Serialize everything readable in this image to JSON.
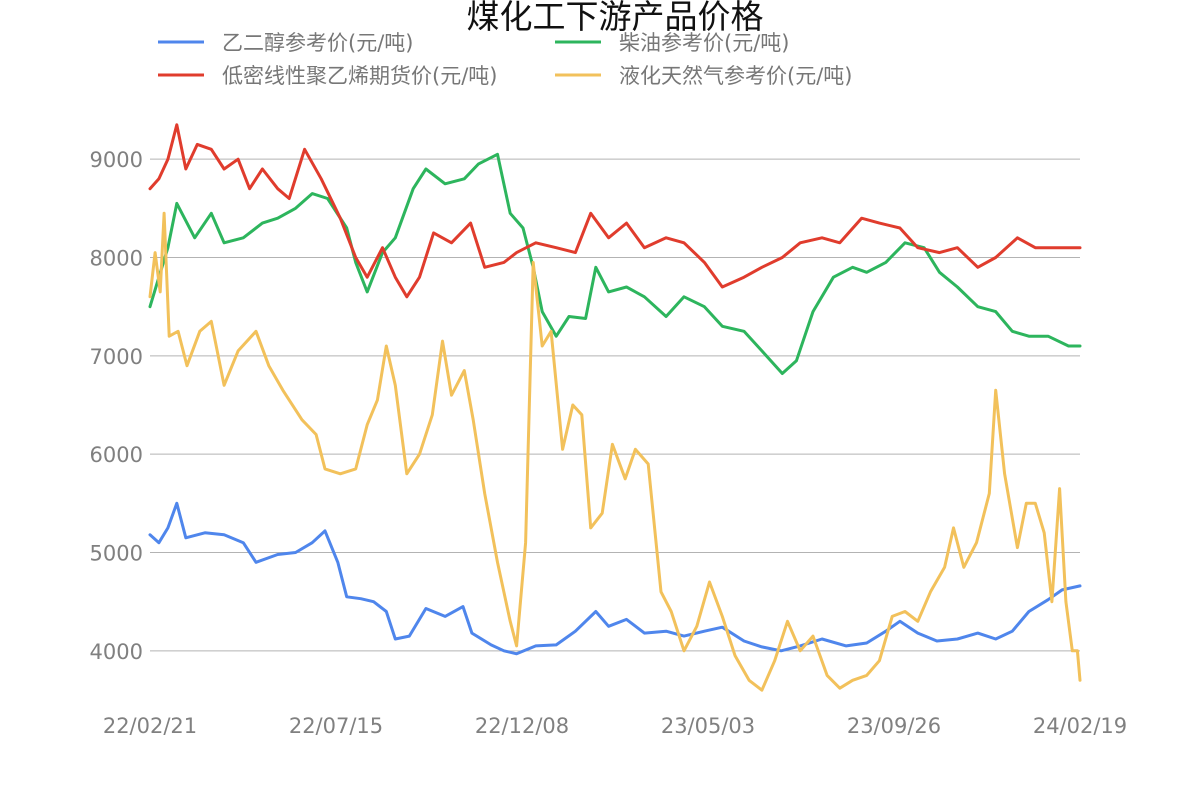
{
  "chart_data": {
    "type": "line",
    "title": "煤化工下游产品价格",
    "xlabel": "",
    "ylabel": "",
    "x_range": [
      "2022-02-21",
      "2024-02-19"
    ],
    "ylim": [
      3500,
      9500
    ],
    "y_ticks": [
      4000,
      5000,
      6000,
      7000,
      8000,
      9000
    ],
    "x_ticks": [
      "22/02/21",
      "22/07/15",
      "22/12/08",
      "23/05/03",
      "23/09/26",
      "24/02/19"
    ],
    "grid": "horizontal",
    "legend_position": "top",
    "series": [
      {
        "name": "乙二醇参考价(元/吨)",
        "color": "#4f86ec",
        "points": [
          [
            "2022-02-21",
            5180
          ],
          [
            "2022-02-28",
            5100
          ],
          [
            "2022-03-07",
            5250
          ],
          [
            "2022-03-14",
            5500
          ],
          [
            "2022-03-21",
            5150
          ],
          [
            "2022-04-05",
            5200
          ],
          [
            "2022-04-20",
            5180
          ],
          [
            "2022-05-05",
            5100
          ],
          [
            "2022-05-15",
            4900
          ],
          [
            "2022-06-01",
            4980
          ],
          [
            "2022-06-15",
            5000
          ],
          [
            "2022-06-28",
            5100
          ],
          [
            "2022-07-08",
            5220
          ],
          [
            "2022-07-18",
            4900
          ],
          [
            "2022-07-25",
            4550
          ],
          [
            "2022-08-05",
            4530
          ],
          [
            "2022-08-15",
            4500
          ],
          [
            "2022-08-25",
            4400
          ],
          [
            "2022-09-01",
            4120
          ],
          [
            "2022-09-12",
            4150
          ],
          [
            "2022-09-25",
            4430
          ],
          [
            "2022-10-10",
            4350
          ],
          [
            "2022-10-24",
            4450
          ],
          [
            "2022-10-31",
            4180
          ],
          [
            "2022-11-15",
            4060
          ],
          [
            "2022-11-25",
            4000
          ],
          [
            "2022-12-05",
            3970
          ],
          [
            "2022-12-20",
            4050
          ],
          [
            "2023-01-05",
            4060
          ],
          [
            "2023-01-20",
            4200
          ],
          [
            "2023-02-05",
            4400
          ],
          [
            "2023-02-15",
            4250
          ],
          [
            "2023-03-01",
            4320
          ],
          [
            "2023-03-15",
            4180
          ],
          [
            "2023-04-01",
            4200
          ],
          [
            "2023-04-15",
            4150
          ],
          [
            "2023-05-01",
            4200
          ],
          [
            "2023-05-15",
            4240
          ],
          [
            "2023-06-01",
            4100
          ],
          [
            "2023-06-15",
            4040
          ],
          [
            "2023-06-30",
            4000
          ],
          [
            "2023-07-15",
            4050
          ],
          [
            "2023-08-01",
            4120
          ],
          [
            "2023-08-20",
            4050
          ],
          [
            "2023-09-05",
            4080
          ],
          [
            "2023-09-20",
            4200
          ],
          [
            "2023-10-01",
            4300
          ],
          [
            "2023-10-15",
            4180
          ],
          [
            "2023-10-30",
            4100
          ],
          [
            "2023-11-15",
            4120
          ],
          [
            "2023-12-01",
            4180
          ],
          [
            "2023-12-15",
            4120
          ],
          [
            "2023-12-28",
            4200
          ],
          [
            "2024-01-10",
            4400
          ],
          [
            "2024-01-25",
            4520
          ],
          [
            "2024-02-05",
            4620
          ],
          [
            "2024-02-19",
            4660
          ]
        ]
      },
      {
        "name": "柴油参考价(元/吨)",
        "color": "#2db55d",
        "points": [
          [
            "2022-02-21",
            7500
          ],
          [
            "2022-02-28",
            7800
          ],
          [
            "2022-03-07",
            8100
          ],
          [
            "2022-03-14",
            8550
          ],
          [
            "2022-03-28",
            8200
          ],
          [
            "2022-04-10",
            8450
          ],
          [
            "2022-04-20",
            8150
          ],
          [
            "2022-05-05",
            8200
          ],
          [
            "2022-05-20",
            8350
          ],
          [
            "2022-06-01",
            8400
          ],
          [
            "2022-06-15",
            8500
          ],
          [
            "2022-06-28",
            8650
          ],
          [
            "2022-07-10",
            8600
          ],
          [
            "2022-07-25",
            8300
          ],
          [
            "2022-08-01",
            7950
          ],
          [
            "2022-08-10",
            7650
          ],
          [
            "2022-08-22",
            8050
          ],
          [
            "2022-09-01",
            8200
          ],
          [
            "2022-09-15",
            8700
          ],
          [
            "2022-09-25",
            8900
          ],
          [
            "2022-10-10",
            8750
          ],
          [
            "2022-10-25",
            8800
          ],
          [
            "2022-11-05",
            8950
          ],
          [
            "2022-11-20",
            9050
          ],
          [
            "2022-11-30",
            8450
          ],
          [
            "2022-12-10",
            8300
          ],
          [
            "2022-12-18",
            7900
          ],
          [
            "2022-12-25",
            7450
          ],
          [
            "2023-01-05",
            7200
          ],
          [
            "2023-01-15",
            7400
          ],
          [
            "2023-01-28",
            7380
          ],
          [
            "2023-02-05",
            7900
          ],
          [
            "2023-02-15",
            7650
          ],
          [
            "2023-03-01",
            7700
          ],
          [
            "2023-03-15",
            7600
          ],
          [
            "2023-04-01",
            7400
          ],
          [
            "2023-04-15",
            7600
          ],
          [
            "2023-05-01",
            7500
          ],
          [
            "2023-05-15",
            7300
          ],
          [
            "2023-06-01",
            7250
          ],
          [
            "2023-06-15",
            7050
          ],
          [
            "2023-07-01",
            6820
          ],
          [
            "2023-07-12",
            6950
          ],
          [
            "2023-07-25",
            7450
          ],
          [
            "2023-08-10",
            7800
          ],
          [
            "2023-08-25",
            7900
          ],
          [
            "2023-09-05",
            7850
          ],
          [
            "2023-09-20",
            7950
          ],
          [
            "2023-10-05",
            8150
          ],
          [
            "2023-10-20",
            8100
          ],
          [
            "2023-11-01",
            7850
          ],
          [
            "2023-11-15",
            7700
          ],
          [
            "2023-12-01",
            7500
          ],
          [
            "2023-12-15",
            7450
          ],
          [
            "2023-12-28",
            7250
          ],
          [
            "2024-01-10",
            7200
          ],
          [
            "2024-01-25",
            7200
          ],
          [
            "2024-02-10",
            7100
          ],
          [
            "2024-02-19",
            7100
          ]
        ]
      },
      {
        "name": "低密线性聚乙烯期货价(元/吨)",
        "color": "#e03c2d",
        "points": [
          [
            "2022-02-21",
            8700
          ],
          [
            "2022-02-28",
            8800
          ],
          [
            "2022-03-07",
            9000
          ],
          [
            "2022-03-14",
            9350
          ],
          [
            "2022-03-21",
            8900
          ],
          [
            "2022-03-30",
            9150
          ],
          [
            "2022-04-10",
            9100
          ],
          [
            "2022-04-20",
            8900
          ],
          [
            "2022-05-01",
            9000
          ],
          [
            "2022-05-10",
            8700
          ],
          [
            "2022-05-20",
            8900
          ],
          [
            "2022-06-01",
            8700
          ],
          [
            "2022-06-10",
            8600
          ],
          [
            "2022-06-22",
            9100
          ],
          [
            "2022-07-05",
            8800
          ],
          [
            "2022-07-20",
            8400
          ],
          [
            "2022-08-01",
            8000
          ],
          [
            "2022-08-10",
            7800
          ],
          [
            "2022-08-22",
            8100
          ],
          [
            "2022-09-01",
            7800
          ],
          [
            "2022-09-10",
            7600
          ],
          [
            "2022-09-20",
            7800
          ],
          [
            "2022-10-01",
            8250
          ],
          [
            "2022-10-15",
            8150
          ],
          [
            "2022-10-30",
            8350
          ],
          [
            "2022-11-10",
            7900
          ],
          [
            "2022-11-25",
            7950
          ],
          [
            "2022-12-05",
            8050
          ],
          [
            "2022-12-20",
            8150
          ],
          [
            "2023-01-05",
            8100
          ],
          [
            "2023-01-20",
            8050
          ],
          [
            "2023-02-01",
            8450
          ],
          [
            "2023-02-15",
            8200
          ],
          [
            "2023-03-01",
            8350
          ],
          [
            "2023-03-15",
            8100
          ],
          [
            "2023-04-01",
            8200
          ],
          [
            "2023-04-15",
            8150
          ],
          [
            "2023-05-01",
            7950
          ],
          [
            "2023-05-15",
            7700
          ],
          [
            "2023-06-01",
            7800
          ],
          [
            "2023-06-15",
            7900
          ],
          [
            "2023-07-01",
            8000
          ],
          [
            "2023-07-15",
            8150
          ],
          [
            "2023-08-01",
            8200
          ],
          [
            "2023-08-15",
            8150
          ],
          [
            "2023-09-01",
            8400
          ],
          [
            "2023-09-15",
            8350
          ],
          [
            "2023-10-01",
            8300
          ],
          [
            "2023-10-15",
            8100
          ],
          [
            "2023-11-01",
            8050
          ],
          [
            "2023-11-15",
            8100
          ],
          [
            "2023-12-01",
            7900
          ],
          [
            "2023-12-15",
            8000
          ],
          [
            "2024-01-01",
            8200
          ],
          [
            "2024-01-15",
            8100
          ],
          [
            "2024-02-01",
            8100
          ],
          [
            "2024-02-19",
            8100
          ]
        ]
      },
      {
        "name": "液化天然气参考价(元/吨)",
        "color": "#f2c15b",
        "points": [
          [
            "2022-02-21",
            7600
          ],
          [
            "2022-02-25",
            8050
          ],
          [
            "2022-03-01",
            7650
          ],
          [
            "2022-03-04",
            8450
          ],
          [
            "2022-03-08",
            7200
          ],
          [
            "2022-03-15",
            7250
          ],
          [
            "2022-03-22",
            6900
          ],
          [
            "2022-04-01",
            7250
          ],
          [
            "2022-04-10",
            7350
          ],
          [
            "2022-04-20",
            6700
          ],
          [
            "2022-05-01",
            7050
          ],
          [
            "2022-05-15",
            7250
          ],
          [
            "2022-05-25",
            6900
          ],
          [
            "2022-06-05",
            6650
          ],
          [
            "2022-06-20",
            6350
          ],
          [
            "2022-07-01",
            6200
          ],
          [
            "2022-07-08",
            5850
          ],
          [
            "2022-07-20",
            5800
          ],
          [
            "2022-08-01",
            5850
          ],
          [
            "2022-08-10",
            6300
          ],
          [
            "2022-08-18",
            6550
          ],
          [
            "2022-08-25",
            7100
          ],
          [
            "2022-09-01",
            6700
          ],
          [
            "2022-09-10",
            5800
          ],
          [
            "2022-09-20",
            6000
          ],
          [
            "2022-09-30",
            6400
          ],
          [
            "2022-10-08",
            7150
          ],
          [
            "2022-10-15",
            6600
          ],
          [
            "2022-10-25",
            6850
          ],
          [
            "2022-11-01",
            6350
          ],
          [
            "2022-11-10",
            5600
          ],
          [
            "2022-11-20",
            4900
          ],
          [
            "2022-11-30",
            4300
          ],
          [
            "2022-12-05",
            4050
          ],
          [
            "2022-12-12",
            5100
          ],
          [
            "2022-12-18",
            7950
          ],
          [
            "2022-12-25",
            7100
          ],
          [
            "2023-01-01",
            7250
          ],
          [
            "2023-01-10",
            6050
          ],
          [
            "2023-01-18",
            6500
          ],
          [
            "2023-01-25",
            6400
          ],
          [
            "2023-02-01",
            5250
          ],
          [
            "2023-02-10",
            5400
          ],
          [
            "2023-02-18",
            6100
          ],
          [
            "2023-02-28",
            5750
          ],
          [
            "2023-03-08",
            6050
          ],
          [
            "2023-03-18",
            5900
          ],
          [
            "2023-03-28",
            4600
          ],
          [
            "2023-04-05",
            4400
          ],
          [
            "2023-04-15",
            4000
          ],
          [
            "2023-04-25",
            4250
          ],
          [
            "2023-05-05",
            4700
          ],
          [
            "2023-05-15",
            4350
          ],
          [
            "2023-05-25",
            3950
          ],
          [
            "2023-06-05",
            3700
          ],
          [
            "2023-06-15",
            3600
          ],
          [
            "2023-06-25",
            3900
          ],
          [
            "2023-07-05",
            4300
          ],
          [
            "2023-07-15",
            4000
          ],
          [
            "2023-07-25",
            4150
          ],
          [
            "2023-08-05",
            3750
          ],
          [
            "2023-08-15",
            3620
          ],
          [
            "2023-08-25",
            3700
          ],
          [
            "2023-09-05",
            3750
          ],
          [
            "2023-09-15",
            3900
          ],
          [
            "2023-09-25",
            4350
          ],
          [
            "2023-10-05",
            4400
          ],
          [
            "2023-10-15",
            4300
          ],
          [
            "2023-10-25",
            4600
          ],
          [
            "2023-11-05",
            4850
          ],
          [
            "2023-11-12",
            5250
          ],
          [
            "2023-11-20",
            4850
          ],
          [
            "2023-11-30",
            5100
          ],
          [
            "2023-12-10",
            5600
          ],
          [
            "2023-12-15",
            6650
          ],
          [
            "2023-12-22",
            5800
          ],
          [
            "2024-01-01",
            5050
          ],
          [
            "2024-01-08",
            5500
          ],
          [
            "2024-01-15",
            5500
          ],
          [
            "2024-01-22",
            5200
          ],
          [
            "2024-01-28",
            4500
          ],
          [
            "2024-02-03",
            5650
          ],
          [
            "2024-02-08",
            4500
          ],
          [
            "2024-02-13",
            4000
          ],
          [
            "2024-02-17",
            4000
          ],
          [
            "2024-02-19",
            3700
          ]
        ]
      }
    ]
  }
}
